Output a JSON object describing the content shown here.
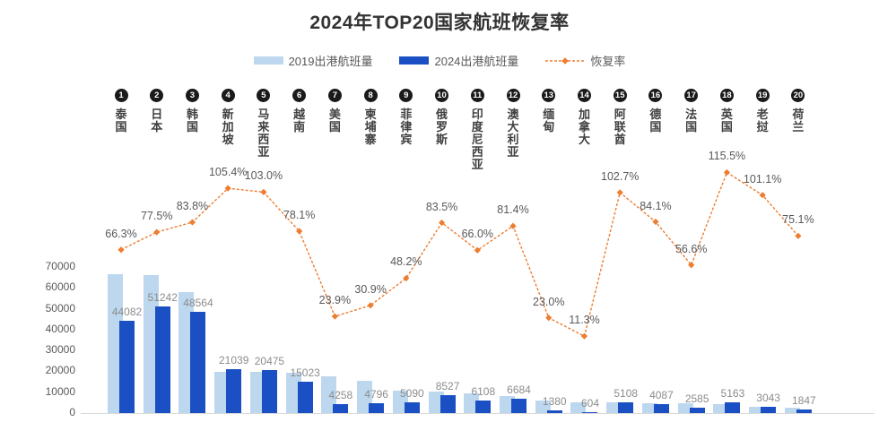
{
  "title": "2024年TOP20国家航班恢复率",
  "legend": {
    "series2019": "2019出港航班量",
    "series2024": "2024出港航班量",
    "rate": "恢复率"
  },
  "chart_data": {
    "type": "bar",
    "title": "2024年TOP20国家航班恢复率",
    "legend_position": "top",
    "grid": false,
    "ranks": [
      1,
      2,
      3,
      4,
      5,
      6,
      7,
      8,
      9,
      10,
      11,
      12,
      13,
      14,
      15,
      16,
      17,
      18,
      19,
      20
    ],
    "categories": [
      "泰国",
      "日本",
      "韩国",
      "新加坡",
      "马来西亚",
      "越南",
      "美国",
      "柬埔寨",
      "菲律宾",
      "俄罗斯",
      "印度尼西亚",
      "澳大利亚",
      "缅甸",
      "加拿大",
      "阿联酋",
      "德国",
      "法国",
      "英国",
      "老挝",
      "荷兰"
    ],
    "series": [
      {
        "name": "2019出港航班量",
        "color": "#BDD7EE",
        "values_estimated": true,
        "values": [
          66490,
          66120,
          57950,
          19960,
          19880,
          19240,
          17820,
          15520,
          10560,
          10210,
          9260,
          8210,
          6000,
          5350,
          4970,
          4860,
          4570,
          4470,
          3010,
          2460
        ]
      },
      {
        "name": "2024出港航班量",
        "color": "#1B50C4",
        "data_labels": true,
        "values": [
          44082,
          51242,
          48564,
          21039,
          20475,
          15023,
          4258,
          4796,
          5090,
          8527,
          6108,
          6684,
          1380,
          604,
          5108,
          4087,
          2585,
          5163,
          3043,
          1847
        ]
      }
    ],
    "line_series": {
      "name": "恢复率",
      "color": "#ED7D31",
      "unit": "%",
      "values": [
        66.3,
        77.5,
        83.8,
        105.4,
        103.0,
        78.1,
        23.9,
        30.9,
        48.2,
        83.5,
        66.0,
        81.4,
        23.0,
        11.3,
        102.7,
        84.1,
        56.6,
        115.5,
        101.1,
        75.1
      ]
    },
    "y_axis": {
      "min": 0,
      "max": 70000,
      "step": 10000
    }
  }
}
